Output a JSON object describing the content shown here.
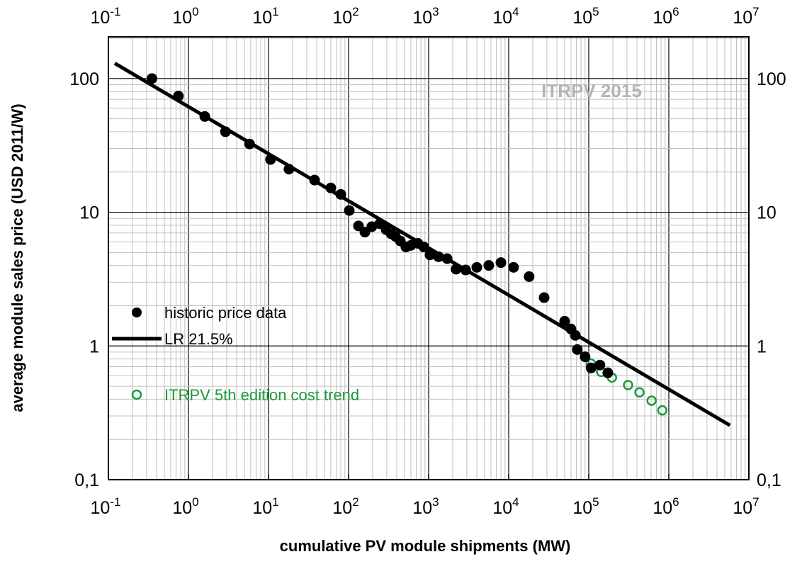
{
  "chart_data": {
    "type": "scatter",
    "xlabel": "cumulative PV module shipments (MW)",
    "ylabel": "average module sales price (USD 2011/W)",
    "x_scale": "log",
    "y_scale": "log",
    "xlim": [
      0.1,
      10000000
    ],
    "ylim": [
      0.1,
      205
    ],
    "grid": true,
    "x_ticks": [
      {
        "base": "10",
        "exp": "-1",
        "value": 0.1
      },
      {
        "base": "10",
        "exp": "0",
        "value": 1
      },
      {
        "base": "10",
        "exp": "1",
        "value": 10
      },
      {
        "base": "10",
        "exp": "2",
        "value": 100
      },
      {
        "base": "10",
        "exp": "3",
        "value": 1000
      },
      {
        "base": "10",
        "exp": "4",
        "value": 10000
      },
      {
        "base": "10",
        "exp": "5",
        "value": 100000
      },
      {
        "base": "10",
        "exp": "6",
        "value": 1000000
      },
      {
        "base": "10",
        "exp": "7",
        "value": 10000000
      }
    ],
    "y_ticks": [
      {
        "label": "100",
        "value": 100
      },
      {
        "label": "10",
        "value": 10
      },
      {
        "label": "1",
        "value": 1
      },
      {
        "label": "0,1",
        "value": 0.1
      }
    ],
    "annotation": "ITRPV 2015",
    "legend_position": "left-middle",
    "series": [
      {
        "name": "historic price data",
        "style": "filled-circle",
        "color": "#000000",
        "points": [
          [
            0.35,
            100
          ],
          [
            0.75,
            74
          ],
          [
            1.6,
            52
          ],
          [
            2.9,
            40
          ],
          [
            5.8,
            32.4
          ],
          [
            10.6,
            24.8
          ],
          [
            18,
            21
          ],
          [
            37.6,
            17.4
          ],
          [
            60,
            15.2
          ],
          [
            80,
            13.6
          ],
          [
            102,
            10.3
          ],
          [
            133,
            7.9
          ],
          [
            160,
            7.1
          ],
          [
            195,
            7.8
          ],
          [
            245,
            8.2
          ],
          [
            295,
            7.4
          ],
          [
            340,
            6.9
          ],
          [
            385,
            6.6
          ],
          [
            443,
            6.1
          ],
          [
            520,
            5.5
          ],
          [
            600,
            5.65
          ],
          [
            735,
            5.85
          ],
          [
            870,
            5.5
          ],
          [
            1040,
            4.8
          ],
          [
            1330,
            4.65
          ],
          [
            1700,
            4.5
          ],
          [
            2200,
            3.75
          ],
          [
            2900,
            3.7
          ],
          [
            4000,
            3.87
          ],
          [
            5640,
            4.0
          ],
          [
            8000,
            4.2
          ],
          [
            11500,
            3.87
          ],
          [
            18000,
            3.3
          ],
          [
            27700,
            2.3
          ],
          [
            50000,
            1.53
          ],
          [
            60000,
            1.34
          ],
          [
            68000,
            1.2
          ],
          [
            72000,
            0.94
          ],
          [
            90000,
            0.83
          ],
          [
            107000,
            0.685
          ],
          [
            138000,
            0.72
          ],
          [
            173000,
            0.63
          ]
        ]
      },
      {
        "name": "LR 21.5%",
        "style": "line",
        "color": "#000000",
        "points": [
          [
            0.12,
            130
          ],
          [
            5800000,
            0.255
          ]
        ]
      },
      {
        "name": "ITRPV 5th edition cost trend",
        "style": "open-circle",
        "color": "#1a9a3a",
        "points": [
          [
            106000,
            0.74
          ],
          [
            143000,
            0.64
          ],
          [
            195000,
            0.58
          ],
          [
            310000,
            0.51
          ],
          [
            430000,
            0.45
          ],
          [
            610000,
            0.39
          ],
          [
            830000,
            0.33
          ]
        ]
      }
    ]
  }
}
